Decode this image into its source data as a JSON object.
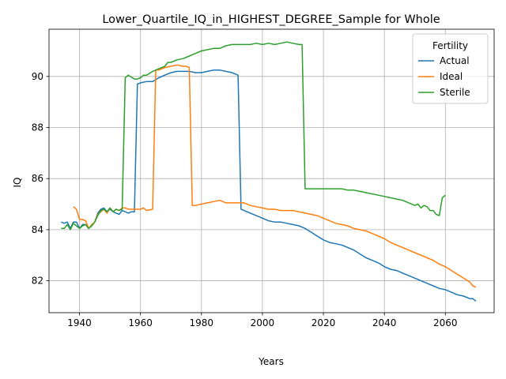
{
  "chart_data": {
    "type": "line",
    "title": "Lower_Quartile_IQ_in_HIGHEST_DEGREE_Sample for Whole",
    "xlabel": "Years",
    "ylabel": "IQ",
    "xlim": [
      1930,
      2076
    ],
    "ylim": [
      80.75,
      91.85
    ],
    "xticks": [
      1940,
      1960,
      1980,
      2000,
      2020,
      2040,
      2060
    ],
    "yticks": [
      82,
      84,
      86,
      88,
      90
    ],
    "grid": true,
    "legend": {
      "title": "Fertility",
      "placement": "top-right"
    },
    "series": [
      {
        "name": "Actual",
        "color": "#1f77b4",
        "points": [
          [
            1934,
            84.3
          ],
          [
            1935,
            84.25
          ],
          [
            1936,
            84.3
          ],
          [
            1937,
            84.05
          ],
          [
            1938,
            84.3
          ],
          [
            1939,
            84.3
          ],
          [
            1940,
            84.05
          ],
          [
            1941,
            84.2
          ],
          [
            1942,
            84.2
          ],
          [
            1943,
            84.05
          ],
          [
            1944,
            84.15
          ],
          [
            1945,
            84.3
          ],
          [
            1946,
            84.65
          ],
          [
            1947,
            84.8
          ],
          [
            1948,
            84.85
          ],
          [
            1949,
            84.7
          ],
          [
            1950,
            84.8
          ],
          [
            1951,
            84.7
          ],
          [
            1952,
            84.65
          ],
          [
            1953,
            84.6
          ],
          [
            1954,
            84.75
          ],
          [
            1955,
            84.7
          ],
          [
            1956,
            84.65
          ],
          [
            1957,
            84.7
          ],
          [
            1958,
            84.7
          ],
          [
            1959,
            89.7
          ],
          [
            1960,
            89.75
          ],
          [
            1962,
            89.8
          ],
          [
            1964,
            89.8
          ],
          [
            1966,
            89.95
          ],
          [
            1968,
            90.05
          ],
          [
            1970,
            90.15
          ],
          [
            1972,
            90.2
          ],
          [
            1974,
            90.2
          ],
          [
            1976,
            90.2
          ],
          [
            1978,
            90.15
          ],
          [
            1980,
            90.15
          ],
          [
            1982,
            90.2
          ],
          [
            1984,
            90.25
          ],
          [
            1986,
            90.25
          ],
          [
            1988,
            90.2
          ],
          [
            1990,
            90.15
          ],
          [
            1992,
            90.05
          ],
          [
            1993,
            84.8
          ],
          [
            1994,
            84.75
          ],
          [
            1996,
            84.65
          ],
          [
            1998,
            84.55
          ],
          [
            2000,
            84.45
          ],
          [
            2002,
            84.35
          ],
          [
            2004,
            84.3
          ],
          [
            2006,
            84.3
          ],
          [
            2008,
            84.25
          ],
          [
            2010,
            84.2
          ],
          [
            2012,
            84.15
          ],
          [
            2014,
            84.05
          ],
          [
            2016,
            83.9
          ],
          [
            2018,
            83.75
          ],
          [
            2020,
            83.6
          ],
          [
            2022,
            83.5
          ],
          [
            2024,
            83.45
          ],
          [
            2026,
            83.4
          ],
          [
            2028,
            83.3
          ],
          [
            2030,
            83.2
          ],
          [
            2032,
            83.05
          ],
          [
            2034,
            82.9
          ],
          [
            2036,
            82.8
          ],
          [
            2038,
            82.7
          ],
          [
            2040,
            82.55
          ],
          [
            2042,
            82.45
          ],
          [
            2044,
            82.4
          ],
          [
            2046,
            82.3
          ],
          [
            2048,
            82.2
          ],
          [
            2050,
            82.1
          ],
          [
            2052,
            82.0
          ],
          [
            2054,
            81.9
          ],
          [
            2056,
            81.8
          ],
          [
            2058,
            81.7
          ],
          [
            2060,
            81.65
          ],
          [
            2062,
            81.55
          ],
          [
            2064,
            81.45
          ],
          [
            2066,
            81.4
          ],
          [
            2068,
            81.3
          ],
          [
            2069,
            81.3
          ],
          [
            2070,
            81.2
          ]
        ]
      },
      {
        "name": "Ideal",
        "color": "#ff7f0e",
        "points": [
          [
            1938,
            84.9
          ],
          [
            1939,
            84.8
          ],
          [
            1940,
            84.4
          ],
          [
            1941,
            84.4
          ],
          [
            1942,
            84.35
          ],
          [
            1943,
            84.05
          ],
          [
            1944,
            84.2
          ],
          [
            1945,
            84.3
          ],
          [
            1946,
            84.6
          ],
          [
            1947,
            84.7
          ],
          [
            1948,
            84.8
          ],
          [
            1949,
            84.65
          ],
          [
            1950,
            84.85
          ],
          [
            1951,
            84.7
          ],
          [
            1952,
            84.8
          ],
          [
            1953,
            84.75
          ],
          [
            1954,
            84.85
          ],
          [
            1955,
            84.85
          ],
          [
            1956,
            84.8
          ],
          [
            1958,
            84.8
          ],
          [
            1960,
            84.8
          ],
          [
            1961,
            84.85
          ],
          [
            1962,
            84.75
          ],
          [
            1964,
            84.8
          ],
          [
            1965,
            90.25
          ],
          [
            1966,
            90.25
          ],
          [
            1968,
            90.35
          ],
          [
            1970,
            90.4
          ],
          [
            1972,
            90.45
          ],
          [
            1974,
            90.4
          ],
          [
            1975,
            90.4
          ],
          [
            1976,
            90.35
          ],
          [
            1977,
            84.95
          ],
          [
            1978,
            84.95
          ],
          [
            1980,
            85.0
          ],
          [
            1982,
            85.05
          ],
          [
            1984,
            85.1
          ],
          [
            1986,
            85.15
          ],
          [
            1988,
            85.05
          ],
          [
            1990,
            85.05
          ],
          [
            1992,
            85.05
          ],
          [
            1994,
            85.05
          ],
          [
            1996,
            84.95
          ],
          [
            1998,
            84.9
          ],
          [
            2000,
            84.85
          ],
          [
            2002,
            84.8
          ],
          [
            2004,
            84.8
          ],
          [
            2006,
            84.75
          ],
          [
            2008,
            84.75
          ],
          [
            2010,
            84.75
          ],
          [
            2012,
            84.7
          ],
          [
            2014,
            84.65
          ],
          [
            2016,
            84.6
          ],
          [
            2018,
            84.55
          ],
          [
            2020,
            84.45
          ],
          [
            2022,
            84.35
          ],
          [
            2024,
            84.25
          ],
          [
            2026,
            84.2
          ],
          [
            2028,
            84.15
          ],
          [
            2030,
            84.05
          ],
          [
            2032,
            84.0
          ],
          [
            2034,
            83.95
          ],
          [
            2036,
            83.85
          ],
          [
            2038,
            83.75
          ],
          [
            2040,
            83.65
          ],
          [
            2042,
            83.5
          ],
          [
            2044,
            83.4
          ],
          [
            2046,
            83.3
          ],
          [
            2048,
            83.2
          ],
          [
            2050,
            83.1
          ],
          [
            2052,
            83.0
          ],
          [
            2054,
            82.9
          ],
          [
            2056,
            82.8
          ],
          [
            2058,
            82.65
          ],
          [
            2060,
            82.55
          ],
          [
            2062,
            82.4
          ],
          [
            2064,
            82.25
          ],
          [
            2066,
            82.1
          ],
          [
            2068,
            81.95
          ],
          [
            2069,
            81.8
          ],
          [
            2070,
            81.75
          ]
        ]
      },
      {
        "name": "Sterile",
        "color": "#2ca02c",
        "points": [
          [
            1934,
            84.05
          ],
          [
            1935,
            84.05
          ],
          [
            1936,
            84.2
          ],
          [
            1937,
            84.0
          ],
          [
            1938,
            84.25
          ],
          [
            1939,
            84.15
          ],
          [
            1940,
            84.05
          ],
          [
            1941,
            84.15
          ],
          [
            1942,
            84.2
          ],
          [
            1943,
            84.05
          ],
          [
            1944,
            84.15
          ],
          [
            1945,
            84.3
          ],
          [
            1946,
            84.55
          ],
          [
            1947,
            84.75
          ],
          [
            1948,
            84.8
          ],
          [
            1949,
            84.7
          ],
          [
            1950,
            84.85
          ],
          [
            1951,
            84.7
          ],
          [
            1952,
            84.8
          ],
          [
            1953,
            84.75
          ],
          [
            1954,
            84.8
          ],
          [
            1955,
            89.95
          ],
          [
            1956,
            90.05
          ],
          [
            1958,
            89.9
          ],
          [
            1959,
            89.9
          ],
          [
            1960,
            89.95
          ],
          [
            1961,
            90.05
          ],
          [
            1962,
            90.05
          ],
          [
            1964,
            90.2
          ],
          [
            1966,
            90.3
          ],
          [
            1968,
            90.4
          ],
          [
            1969,
            90.55
          ],
          [
            1970,
            90.55
          ],
          [
            1972,
            90.65
          ],
          [
            1974,
            90.7
          ],
          [
            1976,
            90.8
          ],
          [
            1978,
            90.9
          ],
          [
            1980,
            91.0
          ],
          [
            1982,
            91.05
          ],
          [
            1984,
            91.1
          ],
          [
            1986,
            91.1
          ],
          [
            1988,
            91.2
          ],
          [
            1990,
            91.25
          ],
          [
            1992,
            91.25
          ],
          [
            1994,
            91.25
          ],
          [
            1996,
            91.25
          ],
          [
            1998,
            91.3
          ],
          [
            2000,
            91.25
          ],
          [
            2002,
            91.3
          ],
          [
            2004,
            91.25
          ],
          [
            2006,
            91.3
          ],
          [
            2008,
            91.35
          ],
          [
            2010,
            91.3
          ],
          [
            2012,
            91.25
          ],
          [
            2013,
            91.25
          ],
          [
            2014,
            85.6
          ],
          [
            2016,
            85.6
          ],
          [
            2018,
            85.6
          ],
          [
            2020,
            85.6
          ],
          [
            2022,
            85.6
          ],
          [
            2024,
            85.6
          ],
          [
            2026,
            85.6
          ],
          [
            2028,
            85.55
          ],
          [
            2030,
            85.55
          ],
          [
            2032,
            85.5
          ],
          [
            2034,
            85.45
          ],
          [
            2036,
            85.4
          ],
          [
            2038,
            85.35
          ],
          [
            2040,
            85.3
          ],
          [
            2042,
            85.25
          ],
          [
            2044,
            85.2
          ],
          [
            2046,
            85.15
          ],
          [
            2048,
            85.05
          ],
          [
            2050,
            84.95
          ],
          [
            2051,
            85.0
          ],
          [
            2052,
            84.85
          ],
          [
            2053,
            84.95
          ],
          [
            2054,
            84.9
          ],
          [
            2055,
            84.75
          ],
          [
            2056,
            84.75
          ],
          [
            2057,
            84.6
          ],
          [
            2058,
            84.55
          ],
          [
            2059,
            85.25
          ],
          [
            2060,
            85.35
          ]
        ]
      }
    ]
  }
}
